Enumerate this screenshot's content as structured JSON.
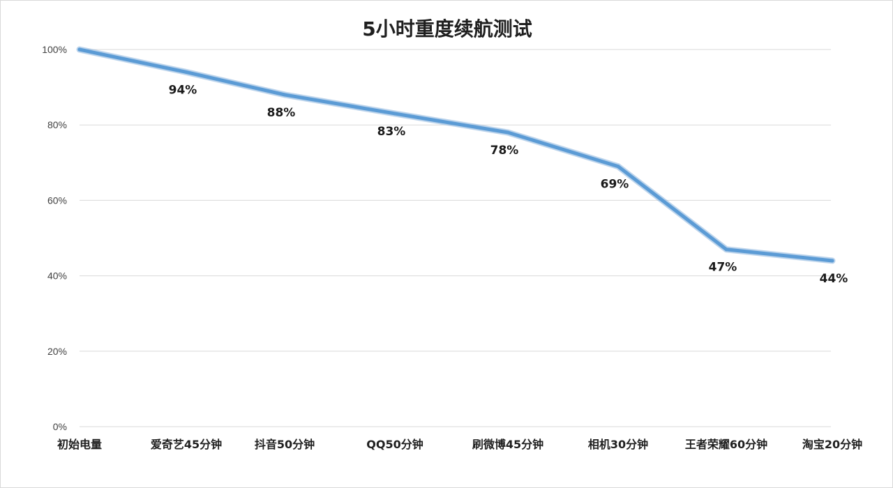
{
  "chart_data": {
    "type": "line",
    "title": "5小时重度续航测试",
    "xlabel": "",
    "ylabel": "",
    "categories": [
      "初始电量",
      "爱奇艺45分钟",
      "抖音50分钟",
      "QQ50分钟",
      "刷微博45分钟",
      "相机30分钟",
      "王者荣耀60分钟",
      "淘宝20分钟"
    ],
    "series": [
      {
        "values": [
          100,
          94,
          88,
          83,
          78,
          69,
          47,
          44
        ],
        "color": "#5b9bd5"
      }
    ],
    "data_labels": [
      "",
      "94%",
      "88%",
      "83%",
      "78%",
      "69%",
      "47%",
      "44%"
    ],
    "ylim": [
      0,
      100
    ],
    "yticks": [
      0,
      20,
      40,
      60,
      80,
      100
    ],
    "ytick_labels": [
      "0%",
      "20%",
      "40%",
      "60%",
      "80%",
      "100%"
    ],
    "grid": true,
    "legend": "none"
  }
}
